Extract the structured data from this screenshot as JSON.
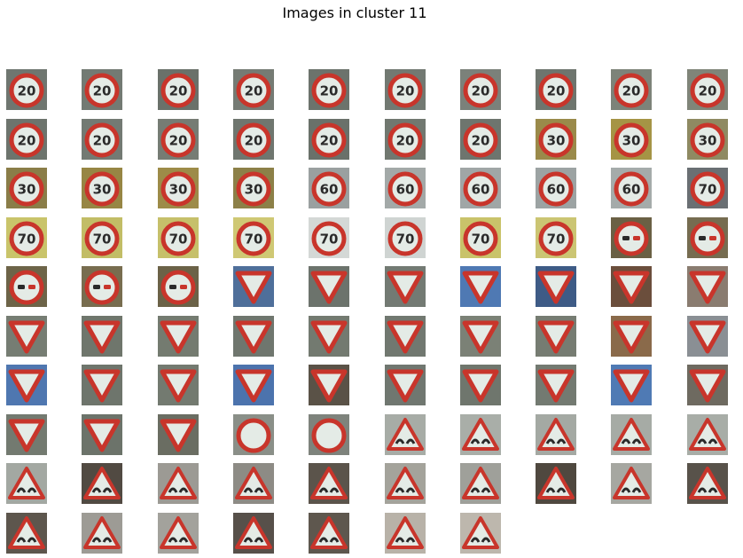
{
  "figure": {
    "title": "Images in cluster 11"
  },
  "grid": {
    "rows": 10,
    "columns": 10,
    "image_count": 97
  },
  "palette": {
    "sign_red": "#c8352b",
    "sign_white": "#e4ebe6",
    "sign_text": "#2a2a2a"
  },
  "images": [
    {
      "kind": "speed",
      "label": "20",
      "bg": "#6f7670"
    },
    {
      "kind": "speed",
      "label": "20",
      "bg": "#737a73"
    },
    {
      "kind": "speed",
      "label": "20",
      "bg": "#6a716a"
    },
    {
      "kind": "speed",
      "label": "20",
      "bg": "#757b74"
    },
    {
      "kind": "speed",
      "label": "20",
      "bg": "#6c736c"
    },
    {
      "kind": "speed",
      "label": "20",
      "bg": "#727972"
    },
    {
      "kind": "speed",
      "label": "20",
      "bg": "#7b817a"
    },
    {
      "kind": "speed",
      "label": "20",
      "bg": "#6e756e"
    },
    {
      "kind": "speed",
      "label": "20",
      "bg": "#7d8379"
    },
    {
      "kind": "speed",
      "label": "20",
      "bg": "#808579"
    },
    {
      "kind": "speed",
      "label": "20",
      "bg": "#6d746d"
    },
    {
      "kind": "speed",
      "label": "20",
      "bg": "#737a73"
    },
    {
      "kind": "speed",
      "label": "20",
      "bg": "#767c74"
    },
    {
      "kind": "speed",
      "label": "20",
      "bg": "#6f766f"
    },
    {
      "kind": "speed",
      "label": "20",
      "bg": "#6a716a"
    },
    {
      "kind": "speed",
      "label": "20",
      "bg": "#717870"
    },
    {
      "kind": "speed",
      "label": "20",
      "bg": "#6e756e"
    },
    {
      "kind": "speed",
      "label": "30",
      "bg": "#9a8a4a"
    },
    {
      "kind": "speed",
      "label": "30",
      "bg": "#a59445"
    },
    {
      "kind": "speed",
      "label": "30",
      "bg": "#8f8a62"
    },
    {
      "kind": "speed",
      "label": "30",
      "bg": "#8a7d48"
    },
    {
      "kind": "speed",
      "label": "30",
      "bg": "#978644"
    },
    {
      "kind": "speed",
      "label": "30",
      "bg": "#9d8b48"
    },
    {
      "kind": "speed",
      "label": "30",
      "bg": "#8c8048"
    },
    {
      "kind": "speed",
      "label": "60",
      "bg": "#9aa0a0"
    },
    {
      "kind": "speed",
      "label": "60",
      "bg": "#a3a9a8"
    },
    {
      "kind": "speed",
      "label": "60",
      "bg": "#a0a6a6"
    },
    {
      "kind": "speed",
      "label": "60",
      "bg": "#9ca3a3"
    },
    {
      "kind": "speed",
      "label": "60",
      "bg": "#a5abaa"
    },
    {
      "kind": "speed",
      "label": "70",
      "bg": "#6a6f73"
    },
    {
      "kind": "speed",
      "label": "70",
      "bg": "#c9c46a"
    },
    {
      "kind": "speed",
      "label": "70",
      "bg": "#c2bd66"
    },
    {
      "kind": "speed",
      "label": "70",
      "bg": "#c6c06a"
    },
    {
      "kind": "speed",
      "label": "70",
      "bg": "#cfc874"
    },
    {
      "kind": "speed",
      "label": "70",
      "bg": "#d4d8d6"
    },
    {
      "kind": "speed",
      "label": "70",
      "bg": "#cfd4d2"
    },
    {
      "kind": "speed",
      "label": "70",
      "bg": "#c9c36a"
    },
    {
      "kind": "speed",
      "label": "70",
      "bg": "#cbc573"
    },
    {
      "kind": "nopass",
      "bg": "#6a6044"
    },
    {
      "kind": "nopass",
      "bg": "#766c50"
    },
    {
      "kind": "nopass",
      "bg": "#6d6448"
    },
    {
      "kind": "nopass",
      "bg": "#786d4f"
    },
    {
      "kind": "nopass",
      "bg": "#6b6247"
    },
    {
      "kind": "yield",
      "bg": "#4f6f9a"
    },
    {
      "kind": "yield",
      "bg": "#6c736c"
    },
    {
      "kind": "yield",
      "bg": "#737a73"
    },
    {
      "kind": "yield",
      "bg": "#4f79b3"
    },
    {
      "kind": "yield",
      "bg": "#3e5b86"
    },
    {
      "kind": "yield",
      "bg": "#6b4e3c"
    },
    {
      "kind": "yield",
      "bg": "#8a7c70"
    },
    {
      "kind": "yield",
      "bg": "#767d73"
    },
    {
      "kind": "yield",
      "bg": "#6f766c"
    },
    {
      "kind": "yield",
      "bg": "#747b70"
    },
    {
      "kind": "yield",
      "bg": "#6f766e"
    },
    {
      "kind": "yield",
      "bg": "#737a70"
    },
    {
      "kind": "yield",
      "bg": "#717870"
    },
    {
      "kind": "yield",
      "bg": "#7b8176"
    },
    {
      "kind": "yield",
      "bg": "#767c72"
    },
    {
      "kind": "yield",
      "bg": "#8a6a4a"
    },
    {
      "kind": "yield",
      "bg": "#8a8f94"
    },
    {
      "kind": "yield",
      "bg": "#4f77b0"
    },
    {
      "kind": "yield",
      "bg": "#6e756c"
    },
    {
      "kind": "yield",
      "bg": "#737a70"
    },
    {
      "kind": "yield",
      "bg": "#4c73ad"
    },
    {
      "kind": "yield",
      "bg": "#5a5247"
    },
    {
      "kind": "yield",
      "bg": "#707770"
    },
    {
      "kind": "yield",
      "bg": "#6f766d"
    },
    {
      "kind": "yield",
      "bg": "#737a71"
    },
    {
      "kind": "yield",
      "bg": "#4f7ab4"
    },
    {
      "kind": "yield",
      "bg": "#6e6a60"
    },
    {
      "kind": "yield",
      "bg": "#737a70"
    },
    {
      "kind": "yield",
      "bg": "#6c736a"
    },
    {
      "kind": "yield",
      "bg": "#6a6d62"
    },
    {
      "kind": "ring",
      "bg": "#8a8f88"
    },
    {
      "kind": "ring",
      "bg": "#7e837c"
    },
    {
      "kind": "bump",
      "bg": "#a7aca6"
    },
    {
      "kind": "bump",
      "bg": "#a9aea8"
    },
    {
      "kind": "bump",
      "bg": "#a4a9a3"
    },
    {
      "kind": "bump",
      "bg": "#a6aba5"
    },
    {
      "kind": "bump",
      "bg": "#a8ada7"
    },
    {
      "kind": "bump",
      "bg": "#a3a8a2"
    },
    {
      "kind": "bump",
      "bg": "#514a42"
    },
    {
      "kind": "bump",
      "bg": "#9c9a94"
    },
    {
      "kind": "bump",
      "bg": "#8d8b85"
    },
    {
      "kind": "bump",
      "bg": "#5b544b"
    },
    {
      "kind": "bump",
      "bg": "#a4a39b"
    },
    {
      "kind": "bump",
      "bg": "#9fa09a"
    },
    {
      "kind": "bump",
      "bg": "#4f483f"
    },
    {
      "kind": "bump",
      "bg": "#a6a7a1"
    },
    {
      "kind": "bump",
      "bg": "#58524a"
    },
    {
      "kind": "bump",
      "bg": "#5d564d"
    },
    {
      "kind": "bump",
      "bg": "#9d9b95"
    },
    {
      "kind": "bump",
      "bg": "#a3a29c"
    },
    {
      "kind": "bump",
      "bg": "#57504a"
    },
    {
      "kind": "bump",
      "bg": "#5e574e"
    },
    {
      "kind": "bump",
      "bg": "#b8b2a8"
    },
    {
      "kind": "bump",
      "bg": "#bdb7ad"
    }
  ]
}
